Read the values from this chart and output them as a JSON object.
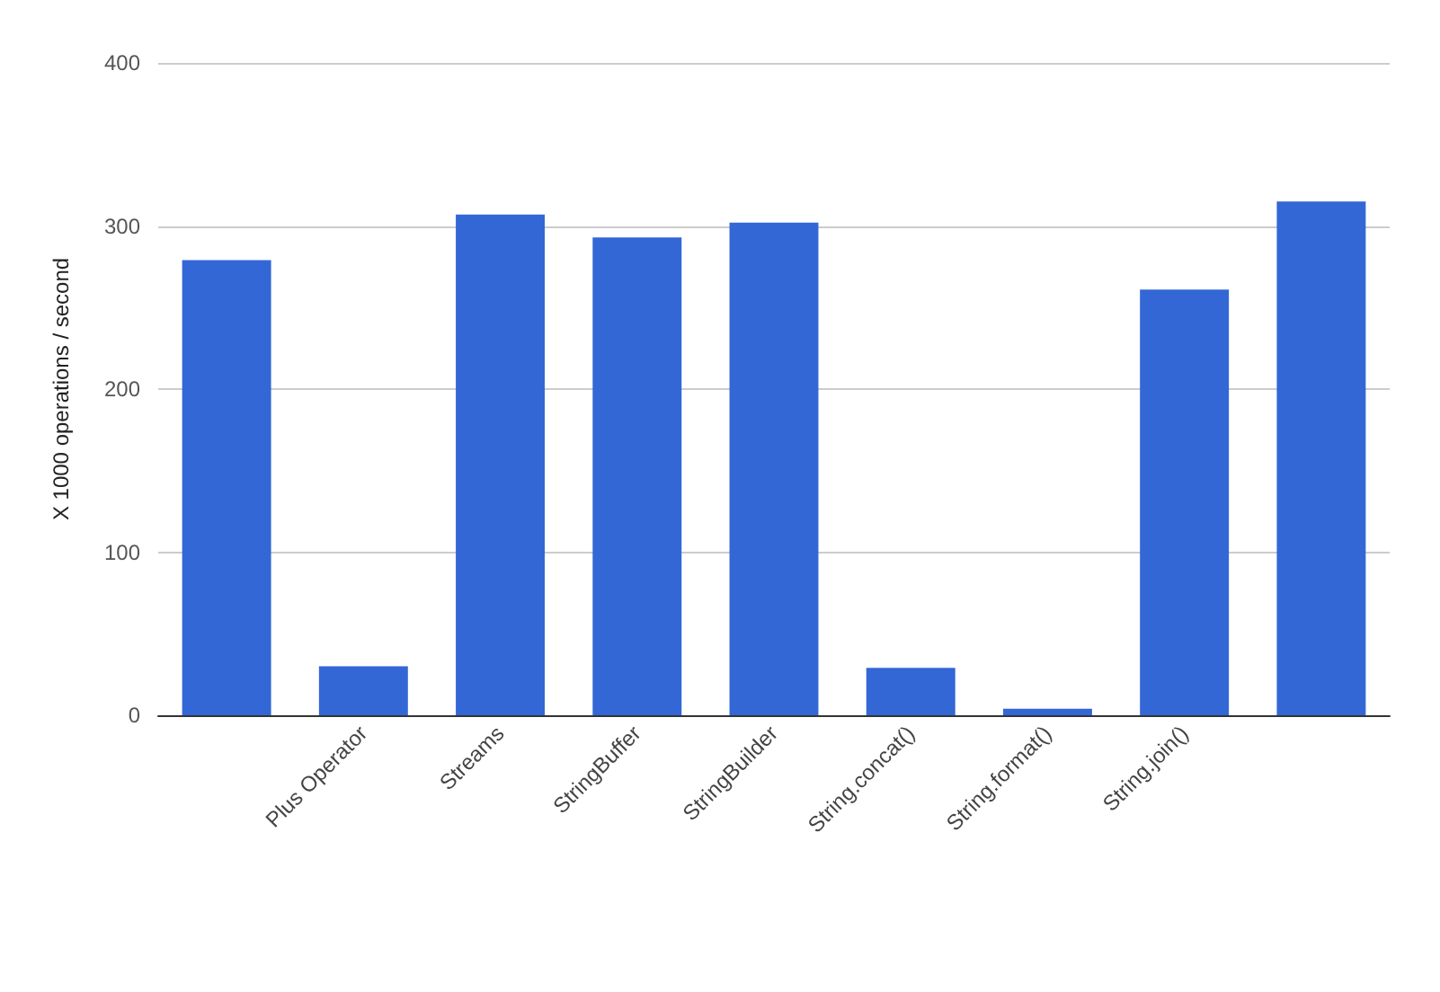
{
  "chart_data": {
    "type": "bar",
    "ylabel": "X 1000 operations / second",
    "categories": [
      null,
      "Plus Operator",
      "Streams",
      "StringBuffer",
      "StringBuilder",
      "String.concat()",
      "String.format()",
      "String.join()",
      null
    ],
    "values": [
      279,
      30,
      307,
      293,
      302,
      29,
      4,
      261,
      315
    ],
    "color": "#3367d6",
    "ylim": [
      0,
      400
    ],
    "yticks": [
      0,
      100,
      200,
      300,
      400
    ],
    "grid": "y"
  }
}
